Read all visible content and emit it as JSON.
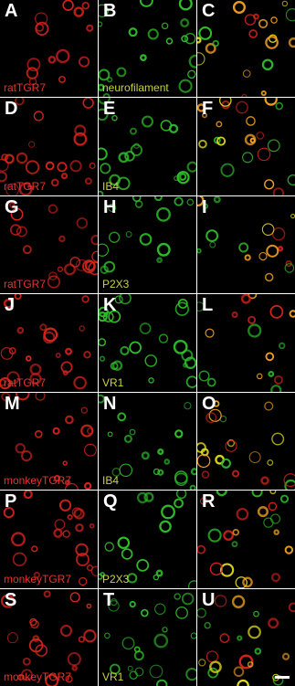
{
  "rows": [
    {
      "cells": [
        {
          "letter": "A",
          "label": "ratTGR7"
        },
        {
          "letter": "B",
          "label": "neurofilament"
        },
        {
          "letter": "C"
        }
      ]
    },
    {
      "cells": [
        {
          "letter": "D",
          "label": "ratTGR7"
        },
        {
          "letter": "E",
          "label": "IB4"
        },
        {
          "letter": "F"
        }
      ]
    },
    {
      "cells": [
        {
          "letter": "G",
          "label": "ratTGR7"
        },
        {
          "letter": "H",
          "label": "P2X3"
        },
        {
          "letter": "I"
        }
      ]
    },
    {
      "cells": [
        {
          "letter": "J",
          "label": "ratTGR7"
        },
        {
          "letter": "K",
          "label": "VR1"
        },
        {
          "letter": "L"
        }
      ]
    },
    {
      "cells": [
        {
          "letter": "M",
          "label": "monkeyTGR7"
        },
        {
          "letter": "N",
          "label": "IB4"
        },
        {
          "letter": "O"
        }
      ]
    },
    {
      "cells": [
        {
          "letter": "P",
          "label": "monkeyTGR7"
        },
        {
          "letter": "Q",
          "label": "P2X3"
        },
        {
          "letter": "R"
        }
      ]
    },
    {
      "cells": [
        {
          "letter": "S",
          "label": "monkeyTGR7"
        },
        {
          "letter": "T",
          "label": "VR1"
        },
        {
          "letter": "U"
        }
      ]
    }
  ]
}
